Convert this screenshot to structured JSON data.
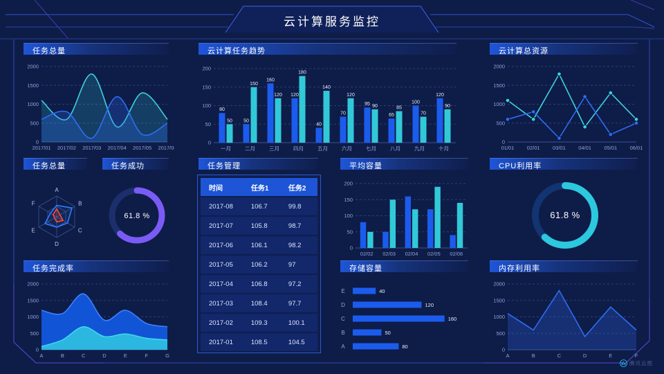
{
  "header": {
    "title": "云计算服务监控"
  },
  "footer": {
    "logo_text": "腾讯云图"
  },
  "panels": {
    "tasks_total_top": {
      "title": "任务总量"
    },
    "task_trend": {
      "title": "云计算任务趋势"
    },
    "total_resources": {
      "title": "云计算总资源"
    },
    "tasks_total_radarروپ": {
      "title": ""
    },
    "tasks_total_radar": {
      "title": "任务总量"
    },
    "task_success": {
      "title": "任务成功"
    },
    "task_management": {
      "title": "任务管理"
    },
    "avg_capacity": {
      "title": "平均容量"
    },
    "cpu_usage": {
      "title": "CPU利用率"
    },
    "task_completion": {
      "title": "任务完成率"
    },
    "storage_capacity": {
      "title": "存储容量"
    },
    "memory_usage": {
      "title": "内存利用率"
    }
  },
  "colors": {
    "blue": "#1b5ced",
    "cyan": "#31c9d8",
    "line_blue": "#2e6df5",
    "line_cyan": "#3ed2de",
    "fill_blue": "rgba(46,109,245,0.25)",
    "fill_cyan": "rgba(49,201,216,0.20)",
    "area_blue": "#1254d6",
    "area_blue_line": "#3b82ff",
    "area_cyan": "#2bb7e0",
    "area_cyan_line": "#40d6e8",
    "purple": "#7a5bf5",
    "cyan_bright": "#2cc8de",
    "track_purple": "#1c2f6d",
    "track_cyan": "#123471",
    "radar_blue": "#2f7dff",
    "radar_red": "#ff4a2e",
    "radar_grid": "#3a548f",
    "grid": "#2b3f78",
    "zero_axis": "#3b5394",
    "axis": "#8ea5d8",
    "bar_label": "#e8efff"
  },
  "table": {
    "headers": [
      "时间",
      "任务1",
      "任务2"
    ],
    "rows": [
      [
        "2017-08",
        "106.7",
        "99.8"
      ],
      [
        "2017-07",
        "105.8",
        "98.7"
      ],
      [
        "2017-06",
        "106.1",
        "98.2"
      ],
      [
        "2017-05",
        "106.2",
        "97"
      ],
      [
        "2017-04",
        "106.8",
        "97.2"
      ],
      [
        "2017-03",
        "108.4",
        "97.7"
      ],
      [
        "2017-02",
        "109.3",
        "100.1"
      ],
      [
        "2017-01",
        "108.5",
        "104.5"
      ]
    ]
  },
  "chart_data": [
    {
      "id": "tasks-total-line",
      "type": "area",
      "title": "任务总量",
      "x": [
        "2017/01",
        "2017/02",
        "2017/03",
        "2017/04",
        "2017/05",
        "2017/06"
      ],
      "ylim": [
        0,
        2000
      ],
      "yticks": [
        0,
        500,
        1000,
        1500,
        2000
      ],
      "smooth": true,
      "markers": false,
      "series": [
        {
          "name": "cyan-series",
          "color": "line_cyan",
          "fill": "fill_cyan",
          "values": [
            1100,
            600,
            1800,
            400,
            1300,
            600
          ]
        },
        {
          "name": "blue-series",
          "color": "line_blue",
          "fill": "fill_blue",
          "values": [
            600,
            800,
            100,
            1200,
            200,
            500
          ]
        }
      ]
    },
    {
      "id": "task-trend-bars",
      "type": "bar",
      "title": "云计算任务趋势",
      "categories": [
        "一月",
        "二月",
        "三月",
        "四月",
        "五月",
        "六月",
        "七月",
        "八月",
        "九月",
        "十月"
      ],
      "ylim": [
        0,
        200
      ],
      "yticks": [
        0,
        50,
        100,
        150,
        200
      ],
      "labels": true,
      "series": [
        {
          "name": "blue-series",
          "color": "blue",
          "values": [
            80,
            50,
            160,
            120,
            40,
            70,
            95,
            65,
            100,
            120
          ]
        },
        {
          "name": "cyan-series",
          "color": "cyan",
          "values": [
            50,
            150,
            120,
            180,
            140,
            120,
            90,
            85,
            70,
            90
          ]
        }
      ]
    },
    {
      "id": "total-resources-line",
      "type": "area",
      "title": "云计算总资源",
      "x": [
        "01/01",
        "02/01",
        "03/01",
        "04/01",
        "05/01",
        "06/01"
      ],
      "ylim": [
        0,
        2000
      ],
      "yticks": [
        0,
        500,
        1000,
        1500,
        2000
      ],
      "smooth": false,
      "markers": true,
      "series": [
        {
          "name": "cyan-series",
          "color": "line_cyan",
          "values": [
            1100,
            600,
            1800,
            400,
            1300,
            600
          ]
        },
        {
          "name": "blue-series",
          "color": "line_blue",
          "values": [
            600,
            800,
            100,
            1200,
            200,
            500
          ]
        }
      ]
    },
    {
      "id": "tasks-radar",
      "type": "radar",
      "title": "任务总量",
      "axes": [
        "A",
        "B",
        "C",
        "D",
        "E",
        "F"
      ],
      "max": 100,
      "series": [
        {
          "name": "blue-series",
          "color": "radar_blue",
          "fill": "rgba(47,125,255,0.10)",
          "values": [
            55,
            85,
            60,
            50,
            65,
            35
          ]
        },
        {
          "name": "red-series",
          "color": "radar_red",
          "fill": "rgba(255,74,46,0.14)",
          "values": [
            38,
            18,
            35,
            25,
            12,
            20
          ]
        }
      ]
    },
    {
      "id": "task-success-donut",
      "type": "donut",
      "title": "任务成功",
      "pct": 61.8,
      "label": "61.8 %",
      "color": "purple",
      "track": "track_purple"
    },
    {
      "id": "avg-capacity-bars",
      "type": "bar",
      "title": "平均容量",
      "categories": [
        "02/02",
        "02/03",
        "02/04",
        "02/05",
        "02/06"
      ],
      "ylim": [
        0,
        200
      ],
      "yticks": [
        0,
        50,
        100,
        150,
        200
      ],
      "labels": false,
      "series": [
        {
          "name": "blue-series",
          "color": "blue",
          "values": [
            80,
            50,
            160,
            120,
            40
          ]
        },
        {
          "name": "cyan-series",
          "color": "cyan",
          "values": [
            50,
            150,
            120,
            190,
            140
          ]
        }
      ]
    },
    {
      "id": "cpu-donut",
      "type": "donut",
      "title": "CPU利用率",
      "pct": 61.8,
      "label": "61.8 %",
      "color": "cyan_bright",
      "track": "track_cyan"
    },
    {
      "id": "task-completion-area",
      "type": "area",
      "title": "任务完成率",
      "x": [
        "A",
        "B",
        "C",
        "D",
        "E",
        "F",
        "G"
      ],
      "ylim": [
        0,
        2000
      ],
      "yticks": [
        0,
        500,
        1000,
        1500,
        2000
      ],
      "smooth": true,
      "markers": false,
      "series": [
        {
          "name": "blue-area",
          "color": "area_blue_line",
          "fill": "area_blue",
          "values": [
            1200,
            1100,
            1700,
            900,
            1200,
            800,
            700
          ]
        },
        {
          "name": "cyan-area",
          "color": "area_cyan_line",
          "fill": "area_cyan",
          "values": [
            100,
            300,
            700,
            400,
            480,
            350,
            300
          ]
        }
      ]
    },
    {
      "id": "storage-hbars",
      "type": "hbar",
      "title": "存储容量",
      "categories": [
        "E",
        "D",
        "C",
        "B",
        "A"
      ],
      "values": [
        40,
        120,
        160,
        50,
        80
      ],
      "xmax": 170,
      "color": "blue"
    },
    {
      "id": "memory-line",
      "type": "area",
      "title": "内存利用率",
      "x": [
        "A",
        "B",
        "C",
        "D",
        "E",
        "F"
      ],
      "ylim": [
        0,
        2000
      ],
      "yticks": [
        0,
        500,
        1000,
        1500,
        2000
      ],
      "smooth": false,
      "markers": false,
      "series": [
        {
          "name": "blue-series",
          "color": "line_blue",
          "fill": "fill_blue",
          "values": [
            1100,
            600,
            1800,
            400,
            1300,
            600
          ]
        }
      ]
    }
  ]
}
